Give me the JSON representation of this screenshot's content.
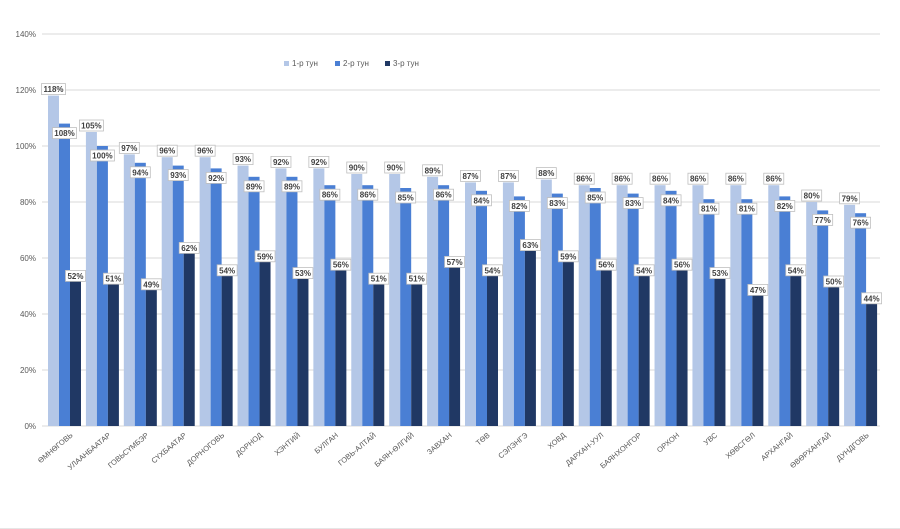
{
  "colors": {
    "series1": "#b4c7e7",
    "series2": "#4a7fd4",
    "series3": "#203864",
    "grid": "#d9d9d9",
    "label_border": "#bfbfbf"
  },
  "chart_data": {
    "type": "bar",
    "title": "",
    "xlabel": "",
    "ylabel": "",
    "ylim": [
      0,
      140
    ],
    "y_ticks": [
      "0%",
      "20%",
      "40%",
      "60%",
      "80%",
      "100%",
      "120%",
      "140%"
    ],
    "grid": true,
    "legend_position": "top-center",
    "categories": [
      "ӨМНӨГОВЬ",
      "УЛААНБААТАР",
      "ГОВЬСҮМБЭР",
      "СҮХБААТАР",
      "ДОРНОГОВЬ",
      "ДОРНОД",
      "ХЭНТИЙ",
      "БУЛГАН",
      "ГОВЬ-АЛТАЙ",
      "БАЯН-ӨЛГИЙ",
      "ЗАВХАН",
      "ТӨВ",
      "СЭЛЭНГЭ",
      "ХОВД",
      "ДАРХАН-УУЛ",
      "БАЯНХОНГОР",
      "ОРХОН",
      "УВС",
      "ХӨВСГӨЛ",
      "АРХАНГАЙ",
      "ӨВӨРХАНГАЙ",
      "ДУНДГОВЬ"
    ],
    "series": [
      {
        "name": "1-р тун",
        "values": [
          118,
          105,
          97,
          96,
          96,
          93,
          92,
          92,
          90,
          90,
          89,
          87,
          87,
          88,
          86,
          86,
          86,
          86,
          86,
          86,
          80,
          79
        ],
        "labels": [
          "118%",
          "105%",
          "97%",
          "96%",
          "96%",
          "93%",
          "92%",
          "92%",
          "90%",
          "90%",
          "89%",
          "87%",
          "87%",
          "88%",
          "86%",
          "86%",
          "86%",
          "86%",
          "86%",
          "86%",
          "80%",
          "79%"
        ]
      },
      {
        "name": "2-р тун",
        "values": [
          108,
          100,
          94,
          93,
          92,
          89,
          89,
          86,
          86,
          85,
          86,
          84,
          82,
          83,
          85,
          83,
          84,
          81,
          81,
          82,
          77,
          76
        ],
        "labels": [
          "108%",
          "100%",
          "94%",
          "93%",
          "92%",
          "89%",
          "89%",
          "86%",
          "86%",
          "85%",
          "86%",
          "84%",
          "82%",
          "83%",
          "85%",
          "83%",
          "84%",
          "81%",
          "81%",
          "82%",
          "77%",
          "76%"
        ]
      },
      {
        "name": "3-р тун",
        "values": [
          52,
          51,
          49,
          62,
          54,
          59,
          53,
          56,
          51,
          51,
          57,
          54,
          63,
          59,
          56,
          54,
          56,
          53,
          47,
          54,
          50,
          44
        ],
        "labels": [
          "52%",
          "51%",
          "49%",
          "62%",
          "54%",
          "59%",
          "53%",
          "56%",
          "51%",
          "51%",
          "57%",
          "54%",
          "63%",
          "59%",
          "56%",
          "54%",
          "56%",
          "53%",
          "47%",
          "54%",
          "50%",
          "44%"
        ]
      }
    ]
  }
}
